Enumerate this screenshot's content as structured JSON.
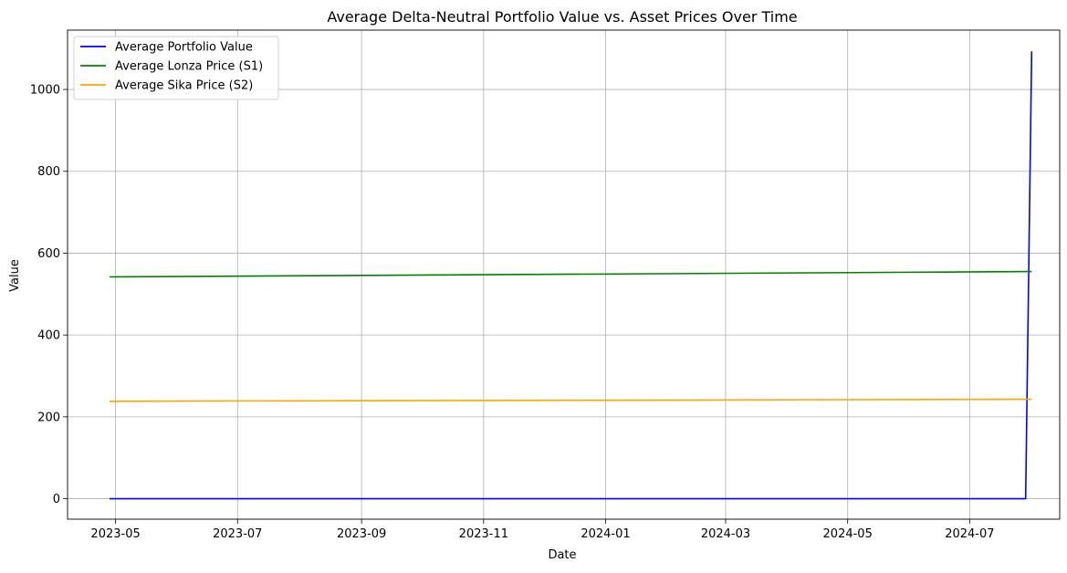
{
  "chart_data": {
    "type": "line",
    "title": "Average Delta-Neutral Portfolio Value vs. Asset Prices Over Time",
    "xlabel": "Date",
    "ylabel": "Value",
    "xlim": [
      "2023-04-07",
      "2024-08-15"
    ],
    "ylim": [
      -50,
      1145
    ],
    "x_ticks": [
      "2023-05",
      "2023-07",
      "2023-09",
      "2023-11",
      "2024-01",
      "2024-03",
      "2024-05",
      "2024-07"
    ],
    "y_ticks": [
      0,
      200,
      400,
      600,
      800,
      1000
    ],
    "grid": true,
    "legend_position": "top-left",
    "colors": {
      "portfolio": "#0000ff",
      "lonza": "#008000",
      "sika": "#ffa500",
      "grid": "#b0b0b0",
      "axes": "#000000"
    },
    "series": [
      {
        "name": "Average Portfolio Value",
        "color": "#0000ff",
        "x": [
          "2023-04-28",
          "2024-07-29",
          "2024-08-01"
        ],
        "values": [
          0,
          0,
          1093
        ]
      },
      {
        "name": "Average Lonza Price (S1)",
        "color": "#008000",
        "x": [
          "2023-04-28",
          "2024-08-01"
        ],
        "values": [
          542,
          555
        ]
      },
      {
        "name": "Average Sika Price (S2)",
        "color": "#ffa500",
        "x": [
          "2023-04-28",
          "2024-08-01"
        ],
        "values": [
          238,
          243
        ]
      }
    ]
  }
}
